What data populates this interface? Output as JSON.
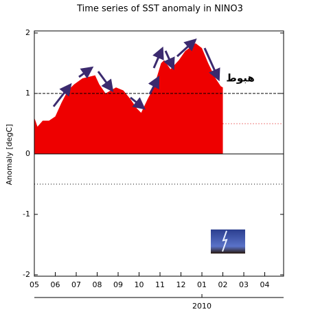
{
  "chart_data": {
    "type": "area",
    "title": "Time series of SST anomaly in NINO3",
    "y_label": "Anomaly [degC]",
    "annotation": "هبوط",
    "color": "#ee0000",
    "x": [
      0,
      0.15,
      0.4,
      0.7,
      1.0,
      1.3,
      1.6,
      1.9,
      2.3,
      2.9,
      3.1,
      3.4,
      3.9,
      4.25,
      4.6,
      4.9,
      5.1,
      5.4,
      5.7,
      6.05,
      6.2,
      6.5,
      6.9,
      7.2,
      7.7,
      8.0,
      8.3,
      8.65,
      8.9,
      9.0
    ],
    "values": [
      0.6,
      0.45,
      0.55,
      0.55,
      0.62,
      0.85,
      1.05,
      1.15,
      1.25,
      1.3,
      1.15,
      1.0,
      1.1,
      1.05,
      0.9,
      0.75,
      0.68,
      0.9,
      1.1,
      1.5,
      1.55,
      1.4,
      1.55,
      1.7,
      1.83,
      1.75,
      1.5,
      1.25,
      1.12,
      1.1
    ],
    "xlim": [
      0,
      11.9
    ],
    "ylim": [
      -2,
      2
    ],
    "xticks": [
      {
        "value": 0,
        "label": "05"
      },
      {
        "value": 1,
        "label": "06"
      },
      {
        "value": 2,
        "label": "07"
      },
      {
        "value": 3,
        "label": "08"
      },
      {
        "value": 4,
        "label": "09"
      },
      {
        "value": 5,
        "label": "10"
      },
      {
        "value": 6,
        "label": "11"
      },
      {
        "value": 7,
        "label": "12"
      },
      {
        "value": 8,
        "label": "01"
      },
      {
        "value": 9,
        "label": "02"
      },
      {
        "value": 10,
        "label": "03"
      },
      {
        "value": 11,
        "label": "04"
      }
    ],
    "year_ticks": [
      {
        "value": 8,
        "label": "2010"
      }
    ],
    "yticks": [
      -2,
      -1,
      0,
      1,
      2
    ],
    "reference_lines": [
      {
        "value": 1,
        "color": "#000000",
        "style": "dashed"
      },
      {
        "value": 0.5,
        "color": "#dd0000",
        "style": "dotted",
        "from": 9
      },
      {
        "value": -0.5,
        "color": "#000000",
        "style": "dotted"
      },
      {
        "value": 0,
        "color": "#000000",
        "style": "solid"
      }
    ]
  }
}
